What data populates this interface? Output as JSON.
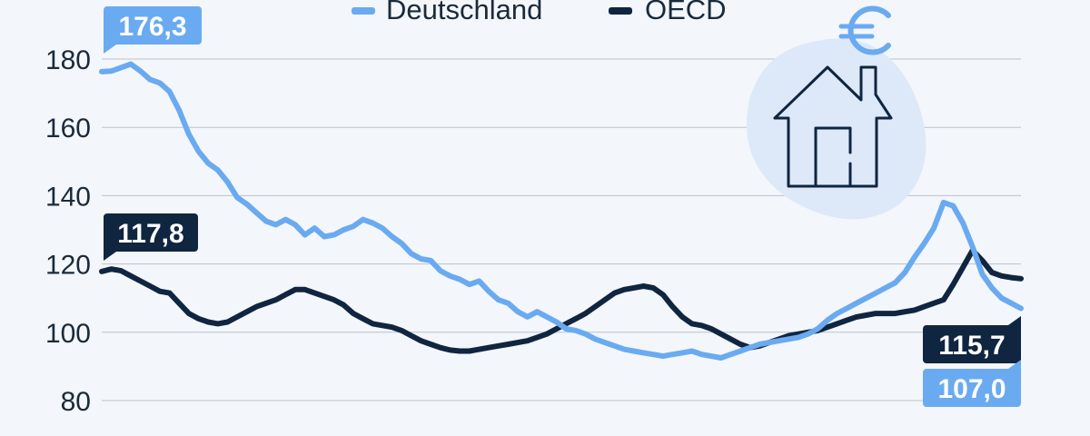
{
  "chart_data": {
    "type": "line",
    "yticks": [
      80,
      100,
      120,
      140,
      160,
      180
    ],
    "ylim": [
      80,
      190
    ],
    "grid": true,
    "legend_position": "top",
    "series": [
      {
        "name": "Deutschland",
        "color": "#6aaaf0",
        "end_label": "107,0",
        "start_label": "176,3",
        "values": [
          176.3,
          176.5,
          177.5,
          178.5,
          176.5,
          174.0,
          173.0,
          170.5,
          165.0,
          158.0,
          153.0,
          149.5,
          147.5,
          144.0,
          139.5,
          137.5,
          135.0,
          132.5,
          131.5,
          133.0,
          131.5,
          128.5,
          130.5,
          128.0,
          128.5,
          130.0,
          131.0,
          133.0,
          132.0,
          130.5,
          128.0,
          126.0,
          123.0,
          121.5,
          121.0,
          118.0,
          116.5,
          115.5,
          114.0,
          115.0,
          112.0,
          109.5,
          108.5,
          106.0,
          104.5,
          106.0,
          104.5,
          103.0,
          101.0,
          100.5,
          99.5,
          98.0,
          97.0,
          96.0,
          95.0,
          94.5,
          94.0,
          93.5,
          93.0,
          93.5,
          94.0,
          94.5,
          93.5,
          93.0,
          92.5,
          93.5,
          94.5,
          95.5,
          96.5,
          97.0,
          97.5,
          98.0,
          98.5,
          99.5,
          101.0,
          103.5,
          105.5,
          107.0,
          108.5,
          110.0,
          111.5,
          113.0,
          114.5,
          117.5,
          122.0,
          126.0,
          130.5,
          138.0,
          137.0,
          132.0,
          125.0,
          117.0,
          113.0,
          110.0,
          108.5,
          107.0
        ]
      },
      {
        "name": "OECD",
        "color": "#0f2540",
        "end_label": "115,7",
        "start_label": "117,8",
        "values": [
          117.8,
          118.5,
          118.0,
          116.5,
          115.0,
          113.5,
          112.0,
          111.5,
          108.5,
          105.5,
          104.0,
          103.0,
          102.5,
          103.0,
          104.5,
          106.0,
          107.5,
          108.5,
          109.5,
          111.0,
          112.5,
          112.5,
          111.5,
          110.5,
          109.5,
          108.0,
          105.5,
          104.0,
          102.5,
          102.0,
          101.5,
          100.5,
          99.0,
          97.5,
          96.5,
          95.5,
          94.8,
          94.5,
          94.5,
          95.0,
          95.5,
          96.0,
          96.5,
          97.0,
          97.5,
          98.5,
          99.5,
          101.0,
          102.5,
          104.0,
          105.5,
          107.5,
          109.5,
          111.5,
          112.5,
          113.0,
          113.5,
          113.0,
          111.0,
          107.5,
          104.5,
          102.5,
          102.0,
          101.0,
          99.5,
          98.0,
          96.5,
          95.5,
          96.0,
          97.0,
          98.0,
          99.0,
          99.5,
          100.0,
          100.5,
          101.5,
          102.5,
          103.5,
          104.5,
          105.0,
          105.5,
          105.5,
          105.5,
          106.0,
          106.5,
          107.5,
          108.5,
          109.5,
          114.0,
          119.0,
          124.0,
          121.0,
          117.5,
          116.5,
          116.0,
          115.7
        ]
      }
    ]
  },
  "icons": [
    "euro-icon",
    "house-icon"
  ]
}
